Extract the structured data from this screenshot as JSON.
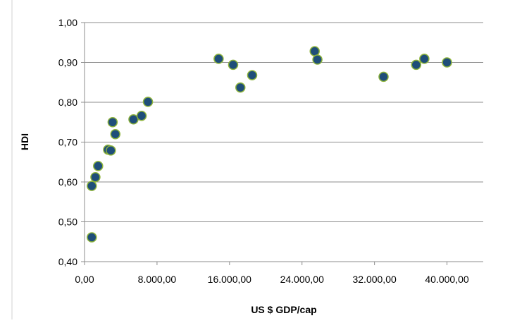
{
  "chart_data": {
    "type": "scatter",
    "title": "",
    "xlabel": "US $ GDP/cap",
    "ylabel": "HDI",
    "xlim": [
      0,
      44000
    ],
    "ylim": [
      0.4,
      1.0
    ],
    "x_ticks": [
      0,
      8000,
      16000,
      24000,
      32000,
      40000
    ],
    "x_tick_labels": [
      "0,00",
      "8.000,00",
      "16.000,00",
      "24.000,00",
      "32.000,00",
      "40.000,00"
    ],
    "y_ticks": [
      0.4,
      0.5,
      0.6,
      0.7,
      0.8,
      0.9,
      1.0
    ],
    "y_tick_labels": [
      "0,40",
      "0,50",
      "0,60",
      "0,70",
      "0,80",
      "0,90",
      "1,00"
    ],
    "grid": "horizontal",
    "legend": "none",
    "marker_fill": "#1f4e79",
    "marker_edge": "#8db33a",
    "points": [
      {
        "x": 800,
        "y": 0.461
      },
      {
        "x": 800,
        "y": 0.59
      },
      {
        "x": 1200,
        "y": 0.612
      },
      {
        "x": 1500,
        "y": 0.64
      },
      {
        "x": 2600,
        "y": 0.681
      },
      {
        "x": 2900,
        "y": 0.679
      },
      {
        "x": 3100,
        "y": 0.75
      },
      {
        "x": 3400,
        "y": 0.72
      },
      {
        "x": 5400,
        "y": 0.757
      },
      {
        "x": 6300,
        "y": 0.766
      },
      {
        "x": 7000,
        "y": 0.801
      },
      {
        "x": 14800,
        "y": 0.909
      },
      {
        "x": 16400,
        "y": 0.894
      },
      {
        "x": 17200,
        "y": 0.837
      },
      {
        "x": 18500,
        "y": 0.868
      },
      {
        "x": 25400,
        "y": 0.928
      },
      {
        "x": 25700,
        "y": 0.907
      },
      {
        "x": 33000,
        "y": 0.864
      },
      {
        "x": 36600,
        "y": 0.894
      },
      {
        "x": 37500,
        "y": 0.909
      },
      {
        "x": 40000,
        "y": 0.9
      }
    ]
  }
}
